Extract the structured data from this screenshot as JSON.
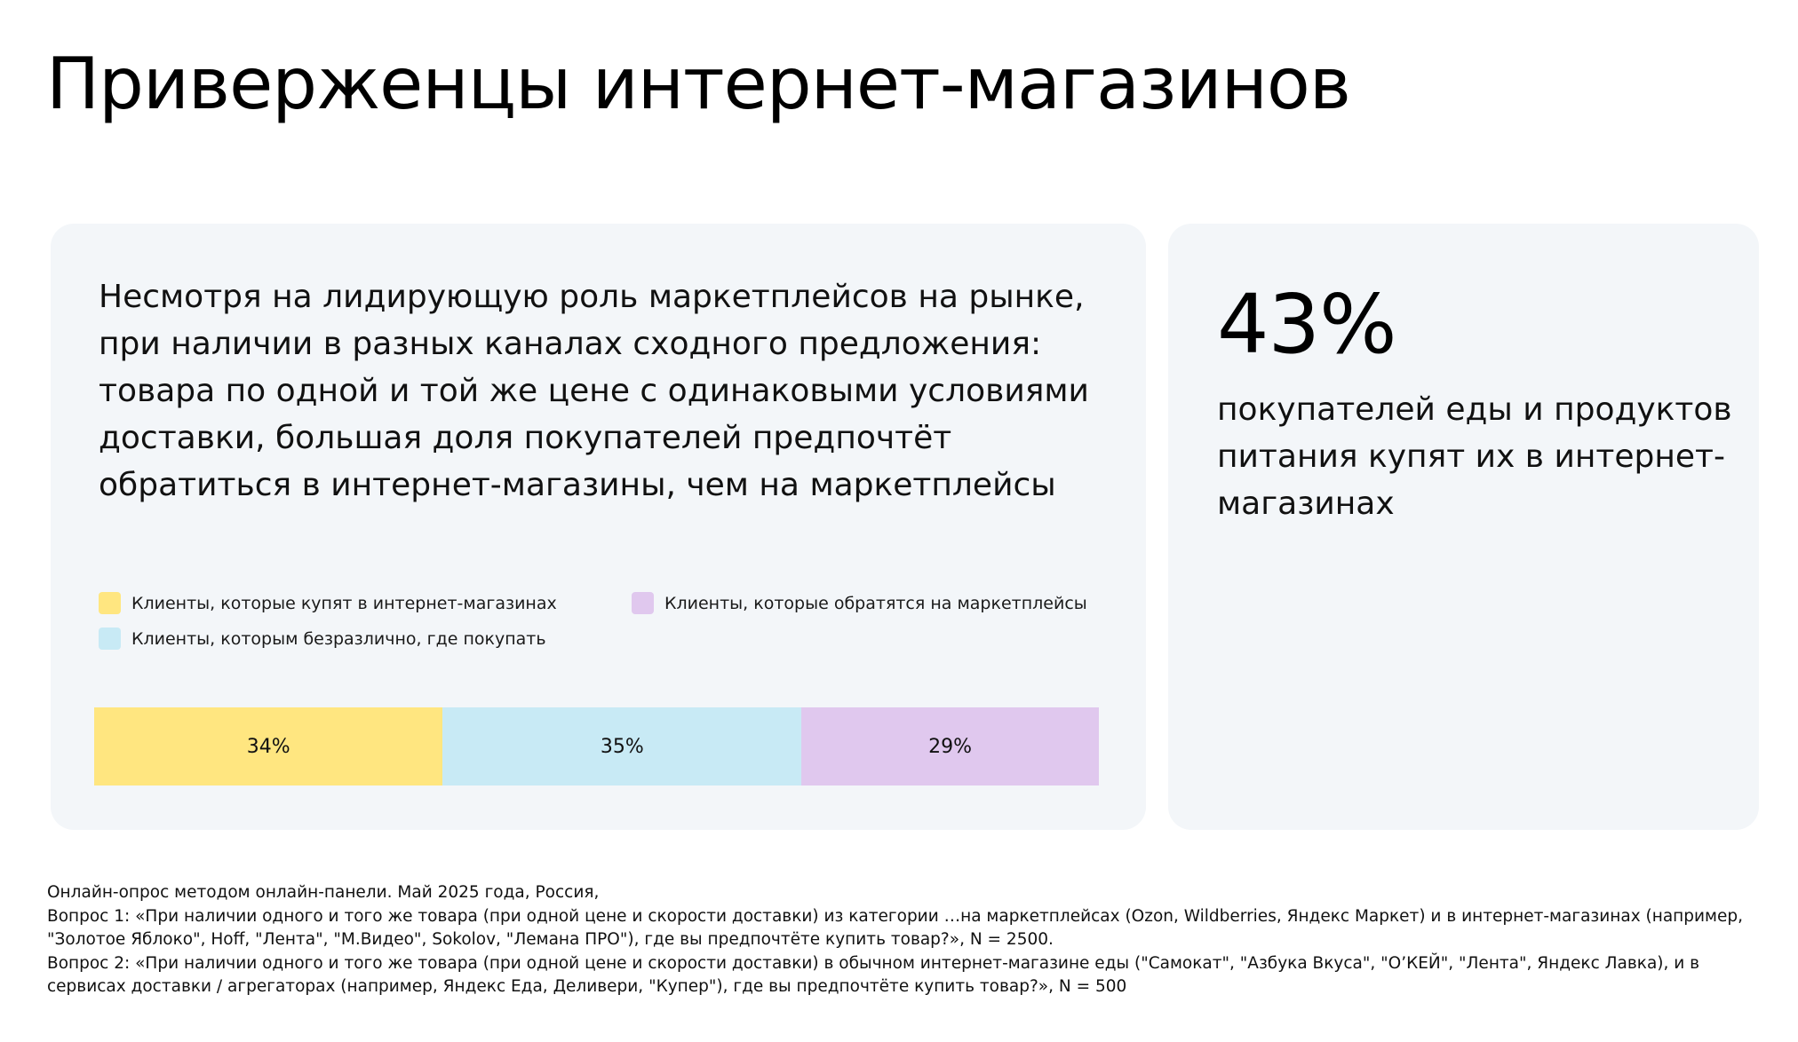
{
  "title": "Приверженцы интернет-магазинов",
  "lead": "Несмотря на лидирующую роль маркетплейсов на рынке, при наличии в разных каналах сходного предложения: товара по одной и той же цене с одинаковыми условиями доставки, большая доля покупателей предпочтёт обратиться в интернет-магазины, чем на маркетплейсы",
  "highlight": {
    "value": "43%",
    "caption": "покупателей еды и продуктов питания купят их в интернет-магазинах"
  },
  "chart_data": {
    "type": "bar",
    "orientation": "horizontal-stacked-100",
    "legend_position": "top",
    "series": [
      {
        "name": "Клиенты, которые купят в интернет-магазинах",
        "value": 34,
        "label": "34%",
        "color": "#ffe680"
      },
      {
        "name": "Клиенты, которым безразлично, где покупать",
        "value": 35,
        "label": "35%",
        "color": "#c8eaf5"
      },
      {
        "name": "Клиенты, которые обратятся на маркетплейсы",
        "value": 29,
        "label": "29%",
        "color": "#e0c8ee"
      }
    ]
  },
  "footnotes": [
    "Онлайн-опрос методом онлайн-панели. Май 2025 года, Россия,",
    "Вопрос 1: «При наличии одного и того же товара (при одной цене и скорости доставки) из категории …на маркетплейсах (Ozon, Wildberries, Яндекс Маркет) и в интернет-магазинах (например, \"Золотое Яблоко\", Hoff, \"Лента\", \"М.Видео\", Sokolov, \"Лемана ПРО\"), где вы предпочтёте купить товар?», N = 2500.",
    "Вопрос 2: «При наличии одного и того же товара (при одной цене и скорости доставки) в обычном интернет-магазине еды (\"Самокат\", \"Азбука Вкуса\", \"О’КЕЙ\", \"Лента\", Яндекс Лавка), и в сервисах доставки / агрегаторах (например, Яндекс Еда, Деливери, \"Купер\"), где вы предпочтёте купить товар?», N = 500"
  ]
}
